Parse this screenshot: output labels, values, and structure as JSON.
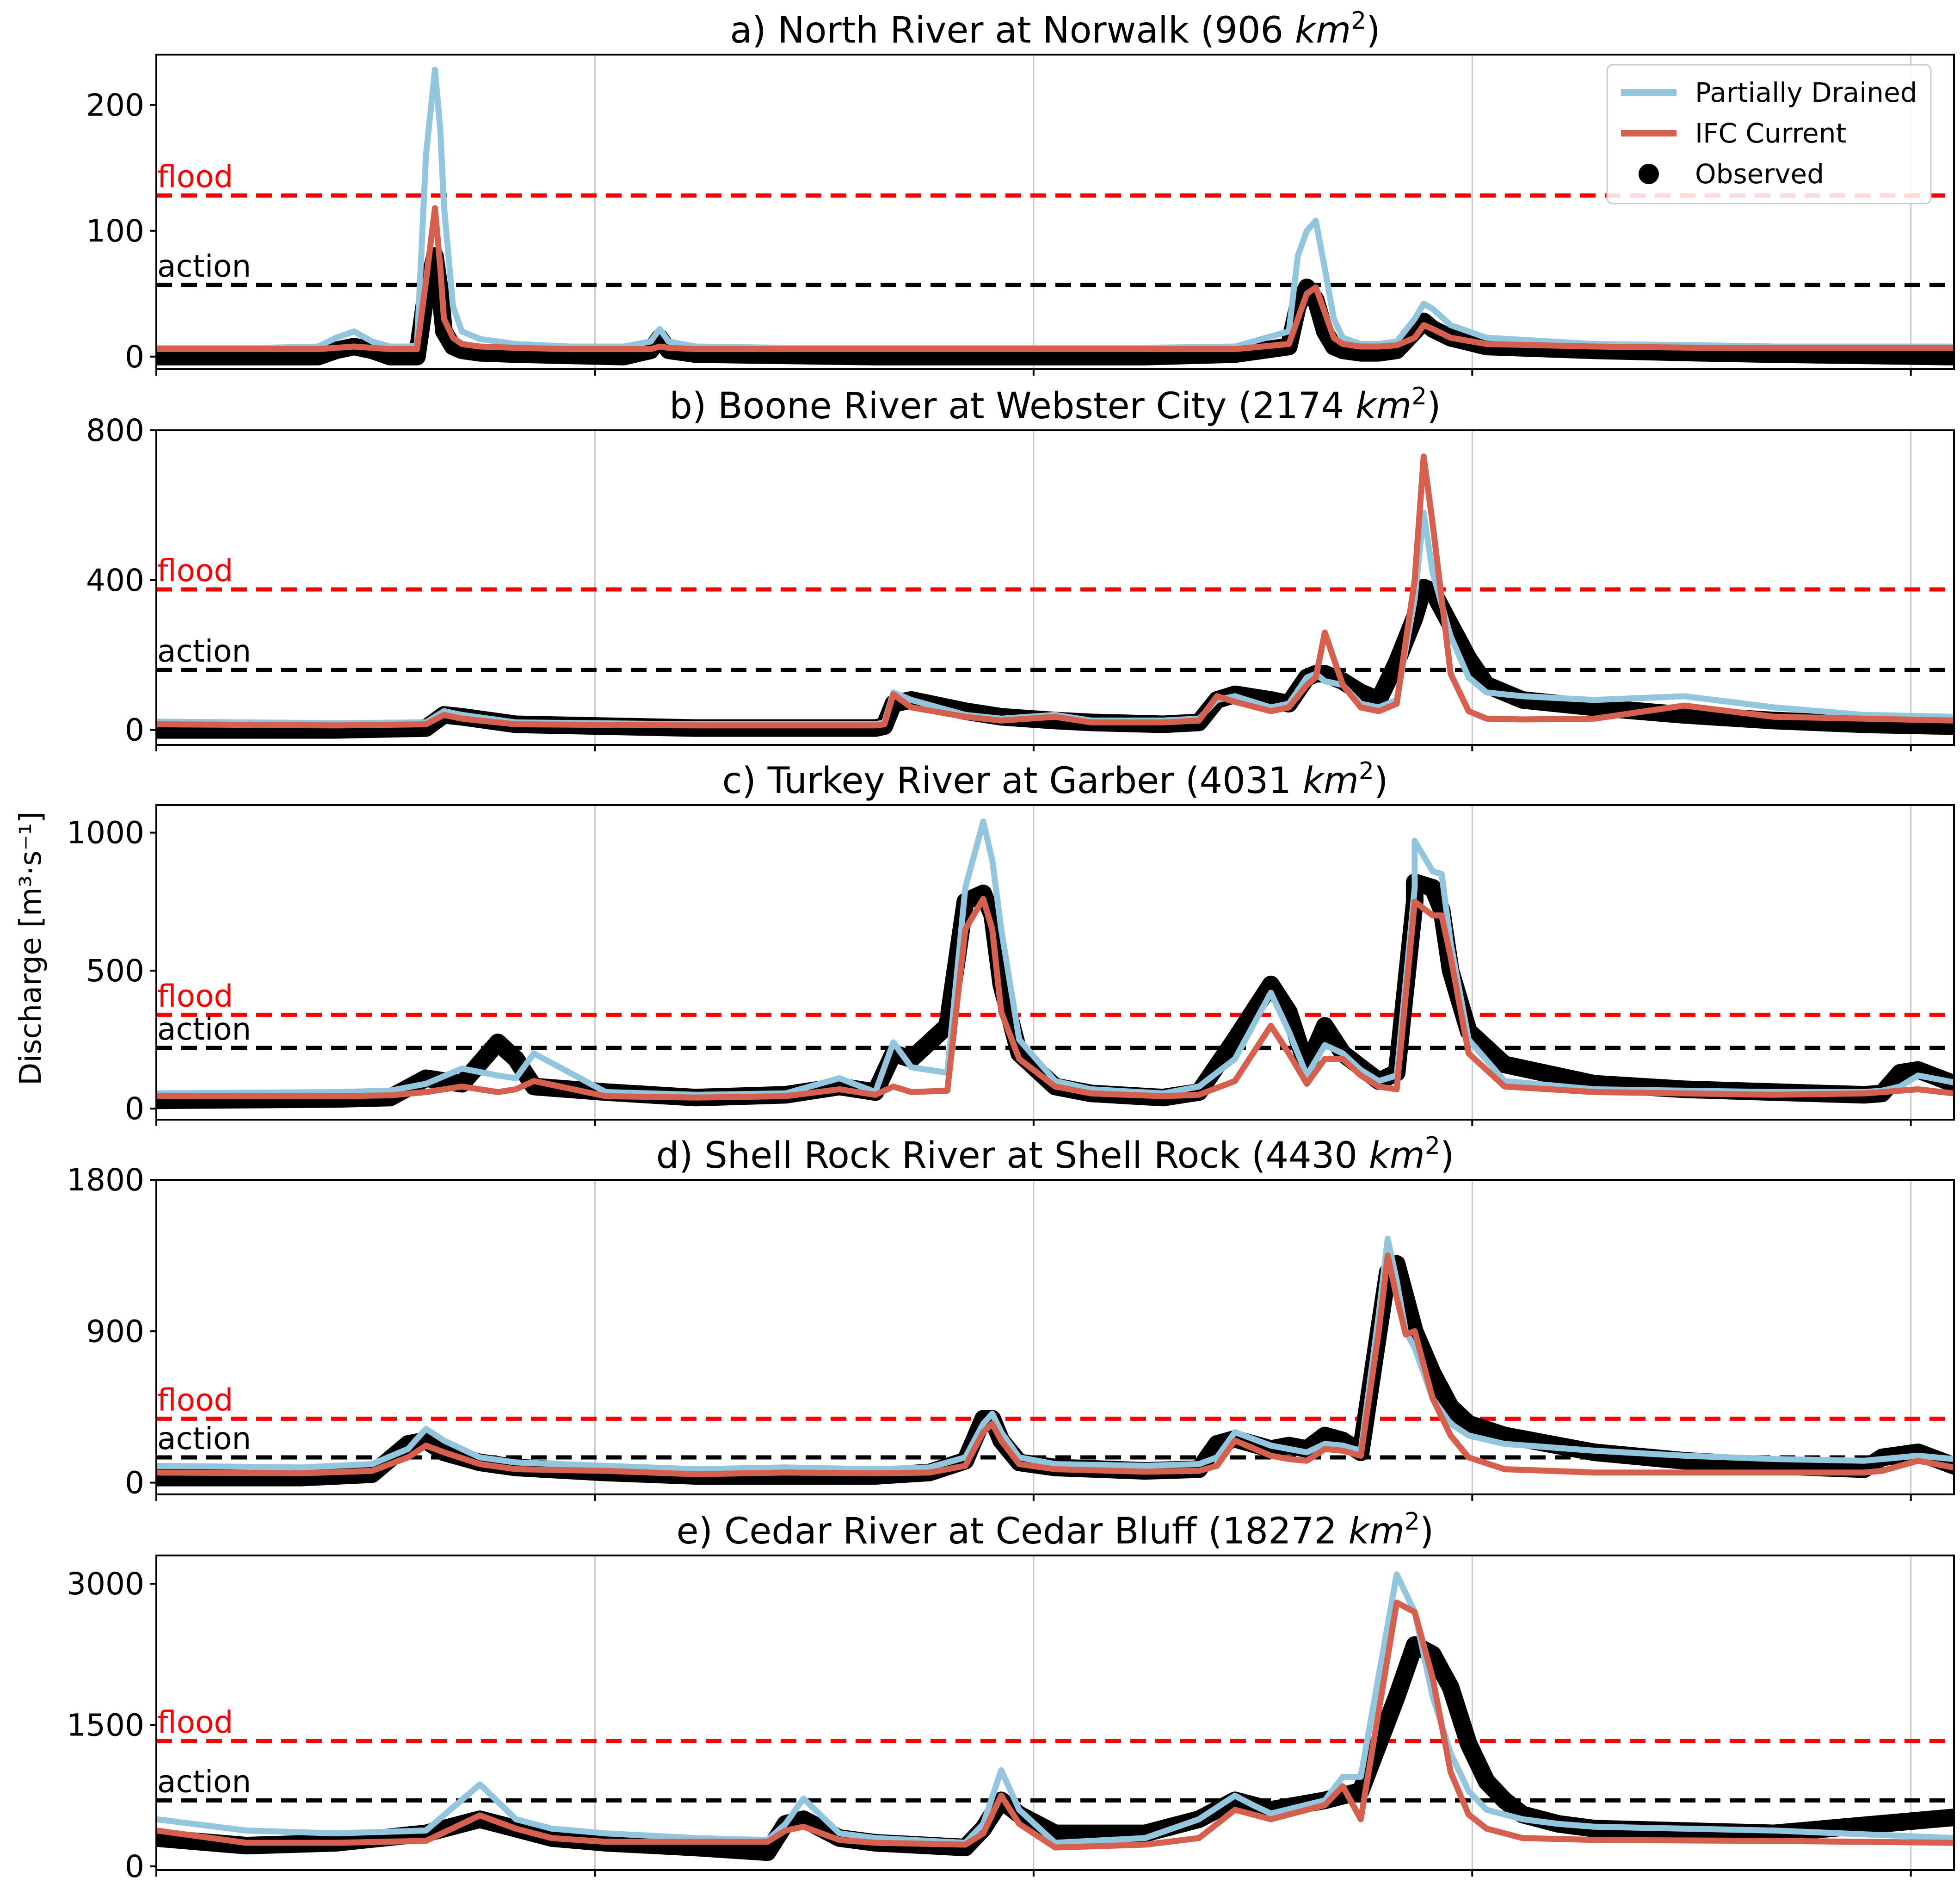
{
  "figure": {
    "ylabel": "Discharge [m³·s⁻¹]",
    "colors": {
      "partially_drained": "#92c5de",
      "ifc_current": "#d6604d",
      "observed": "#000000",
      "flood": "#ff0000",
      "action": "#000000",
      "grid": "#c8c8c8"
    },
    "legend": {
      "placement": "top-right of panel a",
      "entries": [
        "Partially Drained",
        "IFC Current",
        "Observed"
      ]
    },
    "x_grid_fractions": [
      0.0,
      0.244,
      0.488,
      0.732,
      0.976
    ]
  },
  "chart_data": [
    {
      "type": "line",
      "title": "a) North River at Norwalk (906 km²)",
      "title_main": "a) North River at Norwalk (906 ",
      "title_unit": "km",
      "title_sup": "2",
      "title_end": ")",
      "ylim": [
        -10,
        240
      ],
      "yticks": [
        0,
        100,
        200
      ],
      "flood": {
        "label": "flood",
        "value": 128
      },
      "action": {
        "label": "action",
        "value": 57
      },
      "x": [
        0,
        0.03,
        0.06,
        0.09,
        0.1,
        0.11,
        0.12,
        0.13,
        0.135,
        0.14,
        0.145,
        0.15,
        0.155,
        0.158,
        0.16,
        0.165,
        0.17,
        0.18,
        0.2,
        0.23,
        0.26,
        0.275,
        0.28,
        0.285,
        0.3,
        0.35,
        0.4,
        0.45,
        0.5,
        0.55,
        0.6,
        0.63,
        0.635,
        0.64,
        0.645,
        0.65,
        0.655,
        0.66,
        0.67,
        0.68,
        0.69,
        0.7,
        0.705,
        0.71,
        0.72,
        0.74,
        0.8,
        0.86,
        0.9,
        0.95,
        1.0
      ],
      "series": [
        {
          "name": "Partially Drained",
          "values": [
            7,
            7,
            7,
            8,
            15,
            20,
            12,
            8,
            8,
            8,
            9,
            160,
            228,
            180,
            120,
            40,
            20,
            14,
            10,
            8,
            8,
            12,
            22,
            12,
            8,
            7,
            7,
            7,
            7,
            7,
            8,
            20,
            80,
            100,
            108,
            70,
            30,
            15,
            10,
            10,
            12,
            30,
            42,
            38,
            25,
            15,
            10,
            9,
            8,
            8,
            8
          ]
        },
        {
          "name": "IFC Current",
          "values": [
            6,
            6,
            6,
            6,
            7,
            8,
            7,
            6,
            6,
            6,
            6,
            60,
            118,
            70,
            30,
            15,
            10,
            8,
            7,
            6,
            6,
            6,
            8,
            7,
            6,
            6,
            6,
            6,
            6,
            6,
            6,
            10,
            30,
            50,
            55,
            35,
            15,
            10,
            8,
            8,
            9,
            15,
            25,
            22,
            15,
            10,
            8,
            7,
            7,
            7,
            7
          ]
        },
        {
          "name": "Observed",
          "values": [
            0,
            0,
            0,
            0,
            5,
            8,
            5,
            0,
            0,
            0,
            0,
            50,
            80,
            50,
            20,
            8,
            5,
            3,
            2,
            1,
            0,
            5,
            15,
            5,
            2,
            1,
            0,
            0,
            0,
            0,
            2,
            8,
            40,
            55,
            45,
            20,
            8,
            5,
            3,
            3,
            5,
            20,
            28,
            22,
            15,
            8,
            5,
            3,
            2,
            1,
            0
          ]
        }
      ]
    },
    {
      "type": "line",
      "title": "b) Boone River at Webster City (2174 km²)",
      "title_main": "b) Boone River at Webster City (2174 ",
      "title_unit": "km",
      "title_sup": "2",
      "title_end": ")",
      "ylim": [
        -40,
        800
      ],
      "yticks": [
        0,
        400,
        800
      ],
      "flood": {
        "label": "flood",
        "value": 375
      },
      "action": {
        "label": "action",
        "value": 160
      },
      "x": [
        0,
        0.1,
        0.15,
        0.16,
        0.17,
        0.2,
        0.3,
        0.35,
        0.4,
        0.405,
        0.41,
        0.42,
        0.45,
        0.47,
        0.5,
        0.52,
        0.56,
        0.58,
        0.59,
        0.6,
        0.62,
        0.63,
        0.64,
        0.645,
        0.65,
        0.66,
        0.67,
        0.68,
        0.69,
        0.7,
        0.705,
        0.71,
        0.72,
        0.73,
        0.74,
        0.76,
        0.8,
        0.85,
        0.9,
        0.95,
        1.0
      ],
      "series": [
        {
          "name": "Partially Drained",
          "values": [
            22,
            18,
            20,
            50,
            40,
            20,
            15,
            15,
            15,
            20,
            100,
            80,
            40,
            30,
            40,
            25,
            25,
            30,
            80,
            90,
            60,
            70,
            140,
            150,
            130,
            120,
            70,
            60,
            80,
            350,
            580,
            420,
            250,
            140,
            100,
            90,
            80,
            90,
            60,
            40,
            35
          ]
        },
        {
          "name": "IFC Current",
          "values": [
            15,
            12,
            15,
            40,
            30,
            15,
            12,
            12,
            12,
            15,
            95,
            60,
            35,
            25,
            35,
            20,
            20,
            25,
            90,
            75,
            50,
            60,
            120,
            140,
            260,
            120,
            60,
            50,
            70,
            400,
            730,
            550,
            150,
            50,
            30,
            28,
            30,
            65,
            35,
            30,
            25
          ]
        },
        {
          "name": "Observed",
          "values": [
            0,
            0,
            5,
            40,
            35,
            15,
            5,
            5,
            5,
            10,
            70,
            80,
            50,
            35,
            25,
            20,
            15,
            20,
            80,
            95,
            80,
            70,
            140,
            150,
            150,
            130,
            100,
            80,
            180,
            300,
            380,
            370,
            280,
            190,
            120,
            80,
            60,
            40,
            25,
            15,
            10
          ]
        }
      ]
    },
    {
      "type": "line",
      "title": "c) Turkey River at Garber (4031 km²)",
      "title_main": "c) Turkey River at Garber (4031 ",
      "title_unit": "km",
      "title_sup": "2",
      "title_end": ")",
      "ylim": [
        -40,
        1100
      ],
      "yticks": [
        0,
        500,
        1000
      ],
      "flood": {
        "label": "flood",
        "value": 340
      },
      "action": {
        "label": "action",
        "value": 220
      },
      "x": [
        0,
        0.1,
        0.13,
        0.15,
        0.17,
        0.19,
        0.2,
        0.21,
        0.25,
        0.3,
        0.35,
        0.38,
        0.4,
        0.41,
        0.42,
        0.44,
        0.45,
        0.46,
        0.465,
        0.47,
        0.48,
        0.5,
        0.52,
        0.56,
        0.58,
        0.6,
        0.6,
        0.62,
        0.63,
        0.64,
        0.65,
        0.66,
        0.67,
        0.68,
        0.69,
        0.7,
        0.7,
        0.71,
        0.715,
        0.72,
        0.73,
        0.75,
        0.8,
        0.85,
        0.9,
        0.95,
        0.96,
        0.97,
        0.98,
        1.0
      ],
      "series": [
        {
          "name": "Partially Drained",
          "values": [
            55,
            60,
            65,
            90,
            145,
            120,
            110,
            200,
            60,
            50,
            55,
            110,
            60,
            240,
            150,
            130,
            800,
            1040,
            900,
            650,
            250,
            100,
            70,
            55,
            80,
            180,
            180,
            420,
            280,
            120,
            230,
            200,
            140,
            100,
            120,
            800,
            970,
            860,
            850,
            600,
            250,
            100,
            70,
            65,
            60,
            60,
            65,
            80,
            120,
            95
          ]
        },
        {
          "name": "IFC Current",
          "values": [
            45,
            45,
            48,
            60,
            80,
            60,
            70,
            100,
            45,
            40,
            45,
            70,
            50,
            80,
            60,
            65,
            650,
            760,
            650,
            350,
            180,
            80,
            55,
            45,
            50,
            100,
            100,
            300,
            200,
            90,
            180,
            180,
            120,
            80,
            70,
            750,
            750,
            700,
            700,
            550,
            200,
            80,
            60,
            55,
            50,
            55,
            60,
            65,
            70,
            55
          ]
        },
        {
          "name": "Observed",
          "values": [
            30,
            35,
            40,
            110,
            90,
            240,
            180,
            80,
            60,
            40,
            50,
            80,
            60,
            200,
            180,
            300,
            750,
            780,
            700,
            450,
            200,
            80,
            55,
            40,
            60,
            250,
            250,
            450,
            350,
            150,
            300,
            200,
            150,
            100,
            130,
            750,
            820,
            800,
            720,
            500,
            280,
            160,
            90,
            70,
            60,
            50,
            55,
            130,
            140,
            90
          ]
        }
      ]
    },
    {
      "type": "line",
      "title": "d) Shell Rock River at Shell Rock (4430 km²)",
      "title_main": "d) Shell Rock River at Shell Rock (4430 ",
      "title_unit": "km",
      "title_sup": "2",
      "title_end": ")",
      "ylim": [
        -70,
        1800
      ],
      "yticks": [
        0,
        900,
        1800
      ],
      "flood": {
        "label": "flood",
        "value": 380
      },
      "action": {
        "label": "action",
        "value": 150
      },
      "x": [
        0,
        0.08,
        0.12,
        0.14,
        0.15,
        0.16,
        0.18,
        0.2,
        0.25,
        0.3,
        0.35,
        0.4,
        0.43,
        0.45,
        0.46,
        0.465,
        0.47,
        0.48,
        0.5,
        0.55,
        0.58,
        0.59,
        0.6,
        0.62,
        0.63,
        0.64,
        0.65,
        0.66,
        0.67,
        0.68,
        0.685,
        0.69,
        0.695,
        0.7,
        0.71,
        0.72,
        0.73,
        0.75,
        0.8,
        0.85,
        0.9,
        0.95,
        0.96,
        0.98,
        1.0
      ],
      "series": [
        {
          "name": "Partially Drained",
          "values": [
            100,
            90,
            110,
            200,
            320,
            250,
            150,
            120,
            100,
            80,
            90,
            80,
            90,
            150,
            350,
            410,
            300,
            150,
            110,
            100,
            110,
            150,
            300,
            220,
            200,
            180,
            230,
            220,
            190,
            1000,
            1450,
            1200,
            900,
            800,
            500,
            350,
            280,
            230,
            190,
            160,
            140,
            130,
            140,
            160,
            140
          ]
        },
        {
          "name": "IFC Current",
          "values": [
            60,
            55,
            70,
            150,
            220,
            180,
            110,
            80,
            70,
            50,
            60,
            55,
            60,
            100,
            300,
            350,
            250,
            110,
            80,
            65,
            70,
            100,
            250,
            160,
            140,
            130,
            200,
            190,
            160,
            900,
            1350,
            1100,
            880,
            900,
            500,
            280,
            150,
            80,
            60,
            60,
            60,
            60,
            70,
            130,
            90
          ]
        },
        {
          "name": "Observed",
          "values": [
            30,
            30,
            50,
            230,
            250,
            180,
            120,
            90,
            60,
            40,
            40,
            40,
            60,
            130,
            380,
            380,
            250,
            120,
            90,
            70,
            80,
            230,
            260,
            200,
            220,
            200,
            280,
            250,
            180,
            900,
            1250,
            1300,
            1100,
            900,
            650,
            450,
            350,
            280,
            180,
            130,
            100,
            80,
            150,
            180,
            100
          ]
        }
      ]
    },
    {
      "type": "line",
      "title": "e) Cedar River at Cedar Bluff (18272 km²)",
      "title_main": "e) Cedar River at Cedar Bluff (18272 ",
      "title_unit": "km",
      "title_sup": "2",
      "title_end": ")",
      "ylim": [
        -40,
        3300
      ],
      "yticks": [
        0,
        1500,
        3000
      ],
      "flood": {
        "label": "flood",
        "value": 1330
      },
      "action": {
        "label": "action",
        "value": 700
      },
      "x": [
        0,
        0.05,
        0.1,
        0.15,
        0.18,
        0.2,
        0.22,
        0.25,
        0.3,
        0.34,
        0.35,
        0.36,
        0.38,
        0.4,
        0.45,
        0.46,
        0.47,
        0.48,
        0.5,
        0.55,
        0.58,
        0.6,
        0.61,
        0.62,
        0.65,
        0.66,
        0.67,
        0.69,
        0.7,
        0.71,
        0.72,
        0.73,
        0.74,
        0.75,
        0.76,
        0.78,
        0.8,
        0.9,
        1.0
      ],
      "series": [
        {
          "name": "Partially Drained",
          "values": [
            500,
            380,
            350,
            380,
            870,
            500,
            400,
            350,
            300,
            280,
            450,
            720,
            350,
            300,
            250,
            450,
            1020,
            600,
            250,
            300,
            500,
            750,
            650,
            560,
            700,
            950,
            950,
            3100,
            2700,
            1800,
            1200,
            800,
            600,
            550,
            500,
            450,
            420,
            380,
            300
          ]
        },
        {
          "name": "IFC Current",
          "values": [
            380,
            250,
            250,
            270,
            540,
            400,
            300,
            260,
            260,
            260,
            380,
            420,
            280,
            250,
            230,
            350,
            750,
            450,
            200,
            230,
            300,
            600,
            550,
            500,
            650,
            850,
            500,
            2800,
            2700,
            2000,
            1000,
            550,
            400,
            350,
            300,
            290,
            280,
            270,
            250
          ]
        },
        {
          "name": "Observed",
          "values": [
            300,
            220,
            250,
            350,
            500,
            400,
            300,
            250,
            200,
            150,
            450,
            500,
            300,
            250,
            200,
            400,
            700,
            550,
            350,
            350,
            500,
            700,
            650,
            600,
            700,
            750,
            800,
            1800,
            2350,
            2250,
            1900,
            1300,
            900,
            700,
            550,
            450,
            400,
            350,
            520
          ]
        }
      ]
    }
  ]
}
